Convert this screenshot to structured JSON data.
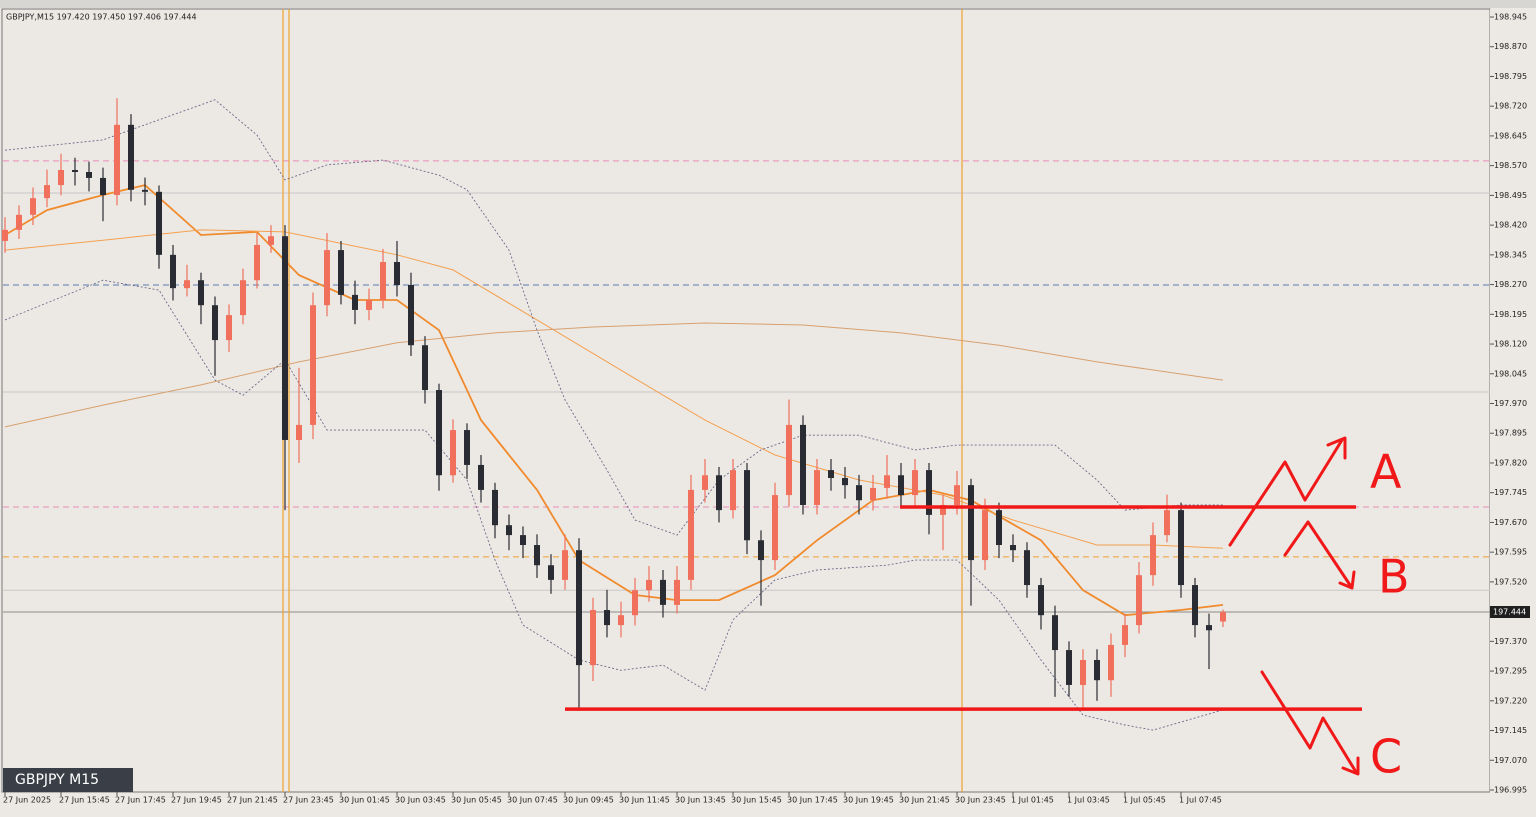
{
  "chart_data": {
    "type": "candlestick",
    "header": "GBPJPY,M15 197.420 197.450 197.406 197.444",
    "symbol_tag": "GBPJPY M15",
    "annotations": [
      "A",
      "B",
      "C"
    ],
    "last_price": 197.444,
    "ylim": [
      196.995,
      198.945
    ],
    "yticks": [
      198.945,
      {
        "value": 198.87,
        "label": "198.870"
      },
      198.795,
      {
        "value": 198.72,
        "label": "198.720"
      },
      198.645,
      {
        "value": 198.57,
        "label": "198.570"
      },
      198.495,
      {
        "value": 198.42,
        "label": "198.420"
      },
      198.345,
      {
        "value": 198.27,
        "label": "198.270"
      },
      198.195,
      {
        "value": 198.12,
        "label": "198.120"
      },
      198.045,
      {
        "value": 197.97,
        "label": "197.970"
      },
      197.895,
      {
        "value": 197.82,
        "label": "197.820"
      },
      197.745,
      {
        "value": 197.67,
        "label": "197.670"
      },
      197.595,
      {
        "value": 197.52,
        "label": "197.520"
      },
      197.445,
      {
        "value": 197.37,
        "label": "197.370"
      },
      197.295,
      {
        "value": 197.22,
        "label": "197.220"
      },
      197.145,
      {
        "value": 197.07,
        "label": "197.070"
      },
      196.995
    ],
    "x_labels": [
      "27 Jun 2025",
      "27 Jun 15:45",
      "27 Jun 17:45",
      "27 Jun 19:45",
      "27 Jun 21:45",
      "27 Jun 23:45",
      "30 Jun 01:45",
      "30 Jun 03:45",
      "30 Jun 05:45",
      "30 Jun 07:45",
      "30 Jun 09:45",
      "30 Jun 11:45",
      "30 Jun 13:45",
      "30 Jun 15:45",
      "30 Jun 17:45",
      "30 Jun 19:45",
      "30 Jun 21:45",
      "30 Jun 23:45",
      "1 Jul 01:45",
      "1 Jul 03:45",
      "1 Jul 05:45",
      "1 Jul 07:45"
    ],
    "up_color": "#f0705c",
    "down_color": "#2a2c34",
    "ohlc": [
      [
        198.38,
        198.44,
        198.35,
        198.408
      ],
      [
        198.408,
        198.47,
        198.385,
        198.446
      ],
      [
        198.446,
        198.515,
        198.42,
        198.488
      ],
      [
        198.488,
        198.56,
        198.465,
        198.521
      ],
      [
        198.521,
        198.6,
        198.495,
        198.559
      ],
      [
        198.559,
        198.59,
        198.52,
        198.554
      ],
      [
        198.554,
        198.58,
        198.505,
        198.539
      ],
      [
        198.539,
        198.565,
        198.43,
        198.496
      ],
      [
        198.496,
        198.74,
        198.47,
        198.673
      ],
      [
        198.673,
        198.7,
        198.48,
        198.509
      ],
      [
        198.509,
        198.54,
        198.47,
        198.504
      ],
      [
        198.504,
        198.52,
        198.31,
        198.345
      ],
      [
        198.345,
        198.37,
        198.23,
        198.261
      ],
      [
        198.261,
        198.32,
        198.24,
        198.281
      ],
      [
        198.281,
        198.3,
        198.17,
        198.218
      ],
      [
        198.218,
        198.24,
        198.04,
        198.13
      ],
      [
        198.13,
        198.22,
        198.1,
        198.193
      ],
      [
        198.193,
        198.31,
        198.17,
        198.281
      ],
      [
        198.281,
        198.4,
        198.26,
        198.37
      ],
      [
        198.37,
        198.42,
        198.35,
        198.392
      ],
      [
        198.392,
        198.42,
        197.701,
        197.878
      ],
      [
        197.878,
        198.06,
        197.82,
        197.916
      ],
      [
        197.916,
        198.25,
        197.88,
        198.218
      ],
      [
        198.218,
        198.4,
        198.19,
        198.357
      ],
      [
        198.357,
        198.38,
        198.22,
        198.244
      ],
      [
        198.244,
        198.28,
        198.17,
        198.206
      ],
      [
        198.206,
        198.26,
        198.18,
        198.231
      ],
      [
        198.231,
        198.36,
        198.21,
        198.327
      ],
      [
        198.327,
        198.38,
        198.24,
        198.269
      ],
      [
        198.269,
        198.3,
        198.09,
        198.117
      ],
      [
        198.117,
        198.14,
        197.97,
        198.004
      ],
      [
        198.004,
        198.02,
        197.75,
        197.789
      ],
      [
        197.789,
        197.93,
        197.77,
        197.903
      ],
      [
        197.903,
        197.92,
        197.78,
        197.815
      ],
      [
        197.815,
        197.84,
        197.72,
        197.752
      ],
      [
        197.752,
        197.77,
        197.63,
        197.663
      ],
      [
        197.663,
        197.69,
        197.6,
        197.638
      ],
      [
        197.638,
        197.66,
        197.58,
        197.613
      ],
      [
        197.613,
        197.64,
        197.53,
        197.562
      ],
      [
        197.562,
        197.59,
        197.49,
        197.525
      ],
      [
        197.525,
        197.64,
        197.5,
        197.6
      ],
      [
        197.6,
        197.63,
        197.2,
        197.31
      ],
      [
        197.31,
        197.48,
        197.27,
        197.449
      ],
      [
        197.449,
        197.5,
        197.38,
        197.411
      ],
      [
        197.411,
        197.47,
        197.38,
        197.436
      ],
      [
        197.436,
        197.53,
        197.41,
        197.499
      ],
      [
        197.499,
        197.56,
        197.47,
        197.525
      ],
      [
        197.525,
        197.55,
        197.43,
        197.462
      ],
      [
        197.462,
        197.56,
        197.44,
        197.525
      ],
      [
        197.525,
        197.79,
        197.5,
        197.752
      ],
      [
        197.752,
        197.83,
        197.72,
        197.789
      ],
      [
        197.789,
        197.81,
        197.67,
        197.701
      ],
      [
        197.701,
        197.83,
        197.68,
        197.802
      ],
      [
        197.802,
        197.82,
        197.59,
        197.625
      ],
      [
        197.625,
        197.65,
        197.46,
        197.575
      ],
      [
        197.575,
        197.77,
        197.55,
        197.739
      ],
      [
        197.739,
        197.98,
        197.71,
        197.916
      ],
      [
        197.916,
        197.94,
        197.69,
        197.714
      ],
      [
        197.714,
        197.83,
        197.69,
        197.802
      ],
      [
        197.802,
        197.83,
        197.75,
        197.782
      ],
      [
        197.782,
        197.81,
        197.73,
        197.764
      ],
      [
        197.764,
        197.79,
        197.69,
        197.726
      ],
      [
        197.726,
        197.79,
        197.7,
        197.757
      ],
      [
        197.757,
        197.84,
        197.73,
        197.789
      ],
      [
        197.789,
        197.82,
        197.71,
        197.739
      ],
      [
        197.739,
        197.83,
        197.71,
        197.802
      ],
      [
        197.802,
        197.82,
        197.64,
        197.689
      ],
      [
        197.689,
        197.74,
        197.6,
        197.714
      ],
      [
        197.714,
        197.8,
        197.69,
        197.764
      ],
      [
        197.764,
        197.78,
        197.46,
        197.575
      ],
      [
        197.575,
        197.73,
        197.55,
        197.701
      ],
      [
        197.701,
        197.72,
        197.58,
        197.613
      ],
      [
        197.613,
        197.64,
        197.57,
        197.6
      ],
      [
        197.6,
        197.62,
        197.48,
        197.512
      ],
      [
        197.512,
        197.53,
        197.4,
        197.436
      ],
      [
        197.436,
        197.46,
        197.23,
        197.348
      ],
      [
        197.348,
        197.37,
        197.23,
        197.26
      ],
      [
        197.26,
        197.35,
        197.2,
        197.323
      ],
      [
        197.323,
        197.35,
        197.22,
        197.272
      ],
      [
        197.272,
        197.39,
        197.23,
        197.361
      ],
      [
        197.361,
        197.44,
        197.33,
        197.411
      ],
      [
        197.411,
        197.57,
        197.39,
        197.537
      ],
      [
        197.537,
        197.67,
        197.51,
        197.638
      ],
      [
        197.638,
        197.74,
        197.62,
        197.701
      ],
      [
        197.701,
        197.72,
        197.48,
        197.512
      ],
      [
        197.512,
        197.53,
        197.38,
        197.411
      ],
      [
        197.411,
        197.44,
        197.3,
        197.398
      ],
      [
        197.42,
        197.45,
        197.406,
        197.444
      ]
    ],
    "overlays": [
      {
        "color": "#f08a2c",
        "width": 1.8,
        "dash": "none",
        "x": [
          0,
          3,
          7,
          10,
          14,
          18,
          21,
          25,
          28,
          31,
          34,
          38,
          41,
          45,
          48,
          51,
          55,
          58,
          62,
          66,
          69,
          74,
          77,
          80,
          84,
          87
        ],
        "values": [
          198.395,
          198.458,
          198.496,
          198.521,
          198.395,
          198.403,
          198.294,
          198.231,
          198.231,
          198.155,
          197.928,
          197.752,
          197.575,
          197.487,
          197.474,
          197.474,
          197.537,
          197.625,
          197.726,
          197.752,
          197.726,
          197.625,
          197.499,
          197.436,
          197.449,
          197.462
        ]
      },
      {
        "color": "#f4a050",
        "width": 1,
        "dash": "none",
        "x": [
          0,
          7,
          14,
          20,
          28,
          32,
          38,
          44,
          50,
          55,
          61,
          67,
          72,
          78,
          82,
          87
        ],
        "values": [
          198.357,
          198.382,
          198.408,
          198.403,
          198.345,
          198.307,
          198.181,
          198.054,
          197.928,
          197.84,
          197.777,
          197.739,
          197.676,
          197.613,
          197.613,
          197.605
        ]
      },
      {
        "color": "#d7a070",
        "width": 1,
        "dash": "none",
        "x": [
          0,
          7,
          14,
          21,
          28,
          35,
          42,
          50,
          57,
          64,
          71,
          78,
          87
        ],
        "values": [
          197.911,
          197.966,
          198.017,
          198.075,
          198.123,
          198.148,
          198.163,
          198.173,
          198.168,
          198.148,
          198.117,
          198.075,
          198.029
        ]
      },
      {
        "color": "#6a6a8a",
        "width": 0.9,
        "dash": "2 2",
        "x": [
          0,
          7,
          10,
          15,
          18,
          20,
          23,
          27,
          31,
          33,
          36,
          38,
          40,
          43,
          45,
          48,
          51,
          54,
          57,
          61,
          65,
          68,
          71,
          75,
          78,
          80,
          84,
          87
        ],
        "values": [
          198.609,
          198.635,
          198.673,
          198.736,
          198.647,
          198.534,
          198.572,
          198.584,
          198.546,
          198.509,
          198.357,
          198.155,
          197.979,
          197.802,
          197.676,
          197.638,
          197.777,
          197.853,
          197.89,
          197.89,
          197.853,
          197.865,
          197.865,
          197.865,
          197.777,
          197.701,
          197.714,
          197.714
        ]
      },
      {
        "color": "#6a6a8a",
        "width": 0.9,
        "dash": "2 2",
        "x": [
          0,
          7,
          11,
          15,
          17,
          20,
          23,
          27,
          30,
          33,
          35,
          37,
          41,
          44,
          47,
          50,
          52,
          55,
          58,
          63,
          65,
          68,
          71,
          74,
          77,
          80,
          82,
          87
        ],
        "values": [
          198.181,
          198.281,
          198.256,
          198.029,
          197.991,
          198.08,
          197.903,
          197.903,
          197.903,
          197.777,
          197.575,
          197.411,
          197.323,
          197.297,
          197.31,
          197.247,
          197.424,
          197.525,
          197.55,
          197.562,
          197.575,
          197.575,
          197.474,
          197.323,
          197.184,
          197.159,
          197.146,
          197.197
        ]
      }
    ],
    "hlines": [
      {
        "value": 198.582,
        "color": "#e88ab8",
        "dash": "6 4"
      },
      {
        "value": 198.501,
        "color": "#c8c8c8",
        "dash": "none"
      },
      {
        "value": 198.269,
        "color": "#5a7ab0",
        "dash": "6 4"
      },
      {
        "value": 197.999,
        "color": "#c8c8c8",
        "dash": "none"
      },
      {
        "value": 197.709,
        "color": "#e88ab8",
        "dash": "6 4"
      },
      {
        "value": 197.583,
        "color": "#f0a030",
        "dash": "6 4"
      },
      {
        "value": 197.499,
        "color": "#c8c8c8",
        "dash": "none"
      },
      {
        "value": 197.444,
        "color": "#8a8a8a",
        "dash": "none"
      }
    ],
    "drawn_levels": [
      {
        "value": 197.709,
        "color": "#f01818"
      },
      {
        "value": 197.199,
        "color": "#f01818"
      }
    ]
  }
}
